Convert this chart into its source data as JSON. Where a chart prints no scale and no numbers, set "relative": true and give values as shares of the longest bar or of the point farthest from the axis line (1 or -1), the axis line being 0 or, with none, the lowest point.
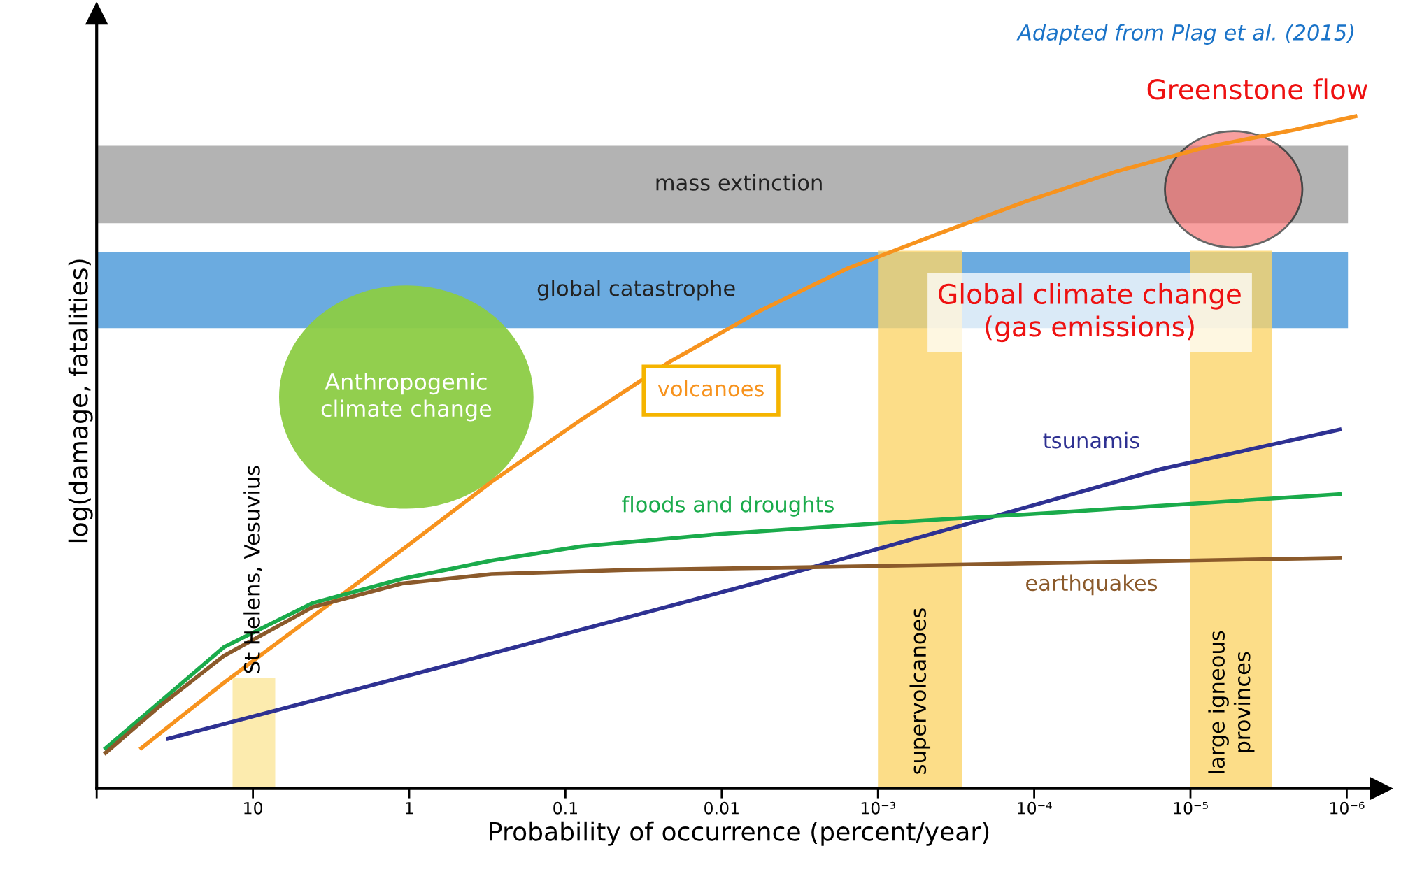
{
  "chart_data": {
    "type": "line",
    "relative": true,
    "log": "x",
    "legend": false,
    "grid": false,
    "xlabel": "Probability of occurrence (percent/year)",
    "ylabel": "log(damage, fatalities)",
    "xlim": [
      100,
      6e-07
    ],
    "xticks": [
      {
        "value": 100,
        "label": null
      },
      10,
      1,
      0.1,
      0.01,
      {
        "value": 0.001,
        "label": "10⁻³"
      },
      {
        "value": 0.0001,
        "label": "10⁻⁴"
      },
      {
        "value": 1e-05,
        "label": "10⁻⁵"
      },
      {
        "value": 1e-06,
        "label": "10⁻⁶"
      }
    ],
    "series": [
      {
        "name": "volcanoes",
        "color": "#f7931e",
        "x": [
          51.8,
          15.4,
          4.14,
          1,
          0.298,
          0.08,
          0.0214,
          0.00575,
          0.00155,
          0.000414,
          0.000111,
          2.98e-05,
          8e-06,
          2.14e-06,
          8.8e-07
        ],
        "values": [
          0.06,
          0.157,
          0.256,
          0.363,
          0.456,
          0.548,
          0.635,
          0.71,
          0.774,
          0.825,
          0.874,
          0.918,
          0.954,
          0.98,
          1.0
        ]
      },
      {
        "name": "tsunamis",
        "color": "#2e3192",
        "x": [
          34.9,
          0.575,
          0.00575,
          0.000214,
          1.55e-05,
          1.11e-06
        ],
        "values": [
          0.074,
          0.183,
          0.307,
          0.4,
          0.475,
          0.534
        ]
      },
      {
        "name": "floods and droughts",
        "color": "#1aab4b",
        "x": [
          87.7,
          38.8,
          15.4,
          4.14,
          1.11,
          0.298,
          0.08,
          0.0111,
          0.0008,
          5.75e-05,
          1.11e-06
        ],
        "values": [
          0.06,
          0.13,
          0.21,
          0.276,
          0.312,
          0.339,
          0.36,
          0.378,
          0.396,
          0.412,
          0.438
        ]
      },
      {
        "name": "earthquakes",
        "color": "#8b5a2b",
        "x": [
          87.7,
          38.8,
          15.4,
          4.14,
          1.11,
          0.298,
          0.0414,
          0.00298,
          5.75e-05,
          1.11e-06
        ],
        "values": [
          0.053,
          0.124,
          0.197,
          0.27,
          0.305,
          0.319,
          0.325,
          0.329,
          0.336,
          0.343
        ]
      }
    ],
    "bands": [
      {
        "axis": "y",
        "from": 0.841,
        "to": 0.956,
        "label": "mass extinction",
        "color": "#9a9a9a"
      },
      {
        "axis": "y",
        "from": 0.685,
        "to": 0.798,
        "label": "global catastrophe",
        "color": "#3a8fd6"
      },
      {
        "axis": "x",
        "from": 13.5,
        "to": 7.2,
        "label": "St Helens, Vesuvius",
        "color": "#fbe69a"
      },
      {
        "axis": "x",
        "from": 0.001,
        "to": 0.00029,
        "label": "supervolcanoes",
        "color": "#fbd56a"
      },
      {
        "axis": "x",
        "from": 1e-05,
        "to": 3e-06,
        "label": "large igneous\nprovinces",
        "color": "#fbd56a"
      }
    ],
    "annotations": [
      "Adapted from Plag et al. (2015)",
      "Greenstone flow",
      "Global climate change\n(gas emissions)",
      "Anthropogenic\nclimate change"
    ]
  }
}
